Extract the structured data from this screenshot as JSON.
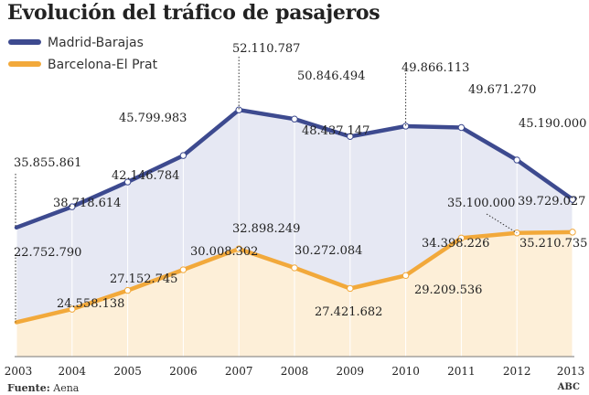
{
  "chart_data": {
    "type": "line",
    "title": "Evolución del tráfico de pasajeros",
    "xlabel": "",
    "ylabel": "",
    "x": [
      "2003",
      "2004",
      "2005",
      "2006",
      "2007",
      "2008",
      "2009",
      "2010",
      "2011",
      "2012",
      "2013"
    ],
    "ylim": [
      18000000,
      62000000
    ],
    "series": [
      {
        "name": "Madrid-Barajas",
        "color": "#3d4a8f",
        "fill": "#e6e8f3",
        "values": [
          35855861,
          38718614,
          42146784,
          45799983,
          52110787,
          50846494,
          48437147,
          49866113,
          49671270,
          45190000,
          39729027
        ],
        "labels": [
          "35.855.861",
          "38.718.614",
          "42.146.784",
          "45.799.983",
          "52.110.787",
          "50.846.494",
          "48.437.147",
          "49.866.113",
          "49.671.270",
          "45.190.000",
          "39.729.027"
        ]
      },
      {
        "name": "Barcelona-El Prat",
        "color": "#f2a93b",
        "fill": "#fdefd8",
        "values": [
          22752790,
          24558138,
          27152745,
          30008302,
          32898249,
          30272084,
          27421682,
          29209536,
          34398226,
          35100000,
          35210735
        ],
        "labels": [
          "22.752.790",
          "24.558.138",
          "27.152.745",
          "30.008.302",
          "32.898.249",
          "30.272.084",
          "27.421.682",
          "29.209.536",
          "34.398.226",
          "35.100.000",
          "35.210.735"
        ]
      }
    ],
    "legend": "top-left",
    "grid": false
  },
  "footer": {
    "source_label": "Fuente:",
    "source_value": "Aena",
    "credit": "ABC"
  }
}
